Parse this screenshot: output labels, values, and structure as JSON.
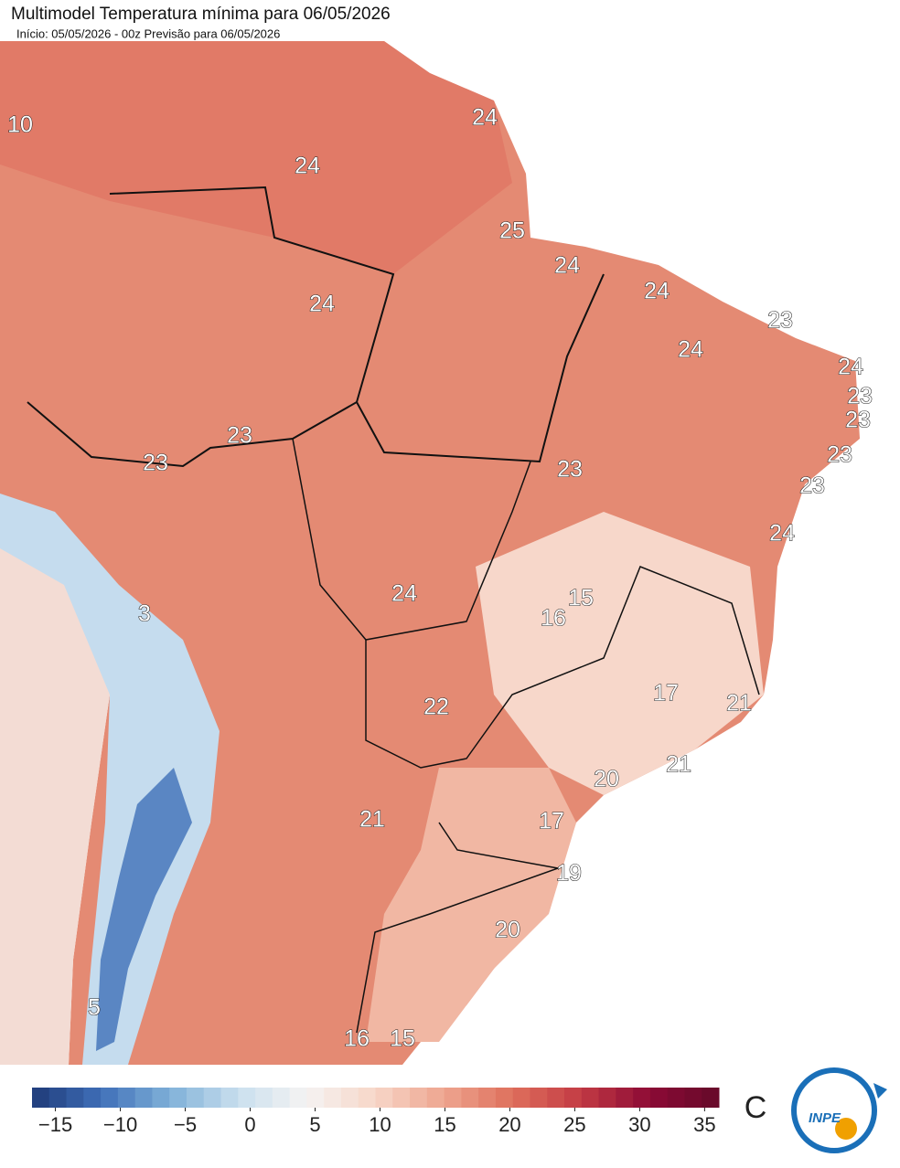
{
  "header": {
    "title": "Multimodel Temperatura mínima para 06/05/2026",
    "subtitle": "Início: 05/05/2026 - 00z  Previsão para 06/05/2026"
  },
  "map": {
    "labels": [
      10,
      24,
      24,
      25,
      24,
      24,
      24,
      23,
      24,
      24,
      23,
      23,
      23,
      23,
      23,
      23,
      23,
      24,
      3,
      15,
      16,
      24,
      17,
      21,
      22,
      21,
      20,
      21,
      17,
      19,
      20,
      5,
      16,
      15
    ]
  },
  "colorbar": {
    "range": [
      -16.8,
      36.1
    ],
    "ticks": [
      {
        "value": -15,
        "label": "−15"
      },
      {
        "value": -10,
        "label": "−10"
      },
      {
        "value": -5,
        "label": "−5"
      },
      0,
      5,
      10,
      15,
      20,
      25,
      30,
      35
    ],
    "colors": [
      "#1f3a78",
      "#3f6fb8",
      "#7fb0d8",
      "#c9dfee",
      "#f5f3f2",
      "#f7d6c8",
      "#eea58f",
      "#de6f5c",
      "#c23a44",
      "#8c0a35",
      "#650a2a"
    ],
    "unit": "C"
  },
  "logo": {
    "text": "INPE"
  }
}
